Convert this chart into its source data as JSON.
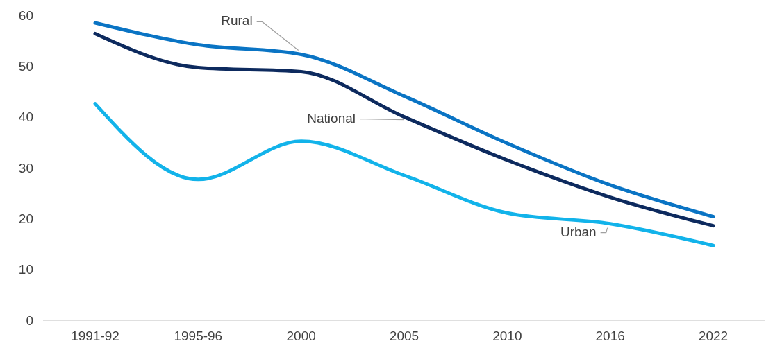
{
  "chart_data": {
    "type": "line",
    "categories": [
      "1991-92",
      "1995-96",
      "2000",
      "2005",
      "2010",
      "2016",
      "2022"
    ],
    "series": [
      {
        "name": "Rural",
        "color": "#0a74c4",
        "values": [
          58.5,
          54.2,
          52.3,
          44.1,
          34.8,
          26.6,
          20.4
        ]
      },
      {
        "name": "National",
        "color": "#0d2a5e",
        "values": [
          56.4,
          49.7,
          48.9,
          40.0,
          31.5,
          24.2,
          18.6
        ]
      },
      {
        "name": "Urban",
        "color": "#12b3ea",
        "values": [
          42.6,
          27.7,
          35.2,
          28.5,
          21.1,
          19.0,
          14.7
        ]
      }
    ],
    "ylim": [
      0,
      60
    ],
    "yticks": [
      0,
      10,
      20,
      30,
      40,
      50,
      60
    ],
    "grid": false,
    "legend": false,
    "marker": "none",
    "line_style": "solid"
  }
}
